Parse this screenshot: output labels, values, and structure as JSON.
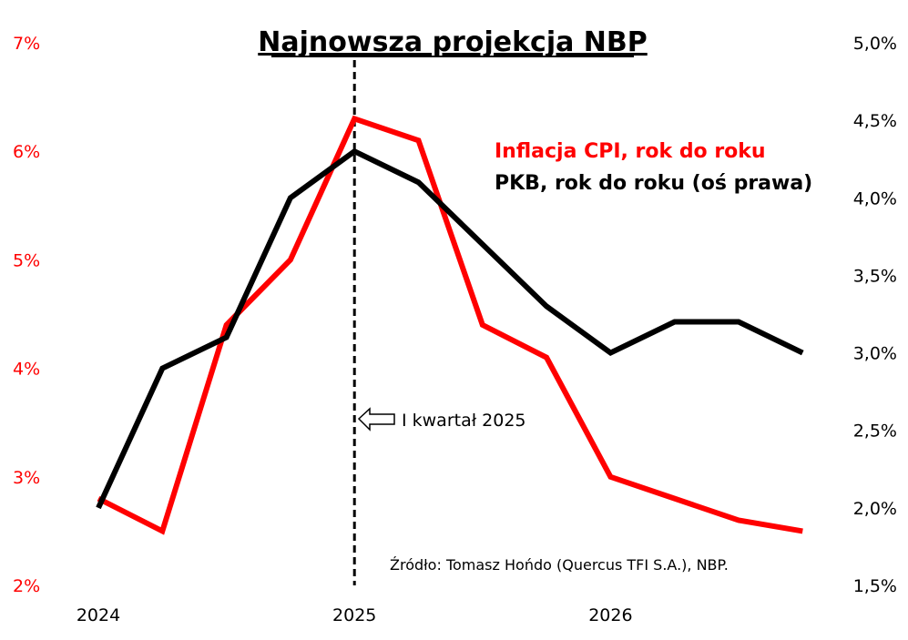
{
  "chart_data": {
    "type": "line",
    "title": "Najnowsza projekcja NBP",
    "x": [
      "2024 Q1",
      "2024 Q2",
      "2024 Q3",
      "2024 Q4",
      "2025 Q1",
      "2025 Q2",
      "2025 Q3",
      "2025 Q4",
      "2026 Q1",
      "2026 Q2",
      "2026 Q3",
      "2026 Q4"
    ],
    "x_tick_labels": [
      "2024",
      "2025",
      "2026"
    ],
    "series": [
      {
        "name": "Inflacja CPI, rok do roku",
        "axis": "left",
        "color": "#ff0000",
        "values": [
          2.8,
          2.5,
          4.4,
          5.0,
          6.3,
          6.1,
          4.4,
          4.1,
          3.0,
          2.8,
          2.6,
          2.5
        ]
      },
      {
        "name": "PKB, rok do roku (oś prawa)",
        "axis": "right",
        "color": "#000000",
        "values": [
          2.0,
          2.9,
          3.1,
          4.0,
          4.3,
          4.1,
          3.7,
          3.3,
          3.0,
          3.2,
          3.2,
          3.0
        ]
      }
    ],
    "left_axis": {
      "ylim": [
        2,
        7
      ],
      "tick_labels": [
        "2%",
        "3%",
        "4%",
        "5%",
        "6%",
        "7%"
      ],
      "color": "#ff0000"
    },
    "right_axis": {
      "ylim": [
        1.5,
        5.0
      ],
      "tick_labels": [
        "1,5%",
        "2,0%",
        "2,5%",
        "3,0%",
        "3,5%",
        "4,0%",
        "4,5%",
        "5,0%"
      ],
      "color": "#000000"
    },
    "grid": false,
    "legend_placement": "top-right",
    "annotations": {
      "vertical_marker_at": "2025 Q1",
      "marker_label": "I kwartał 2025",
      "source": "Źródło: Tomasz Hońdo (Quercus TFI S.A.), NBP."
    }
  }
}
